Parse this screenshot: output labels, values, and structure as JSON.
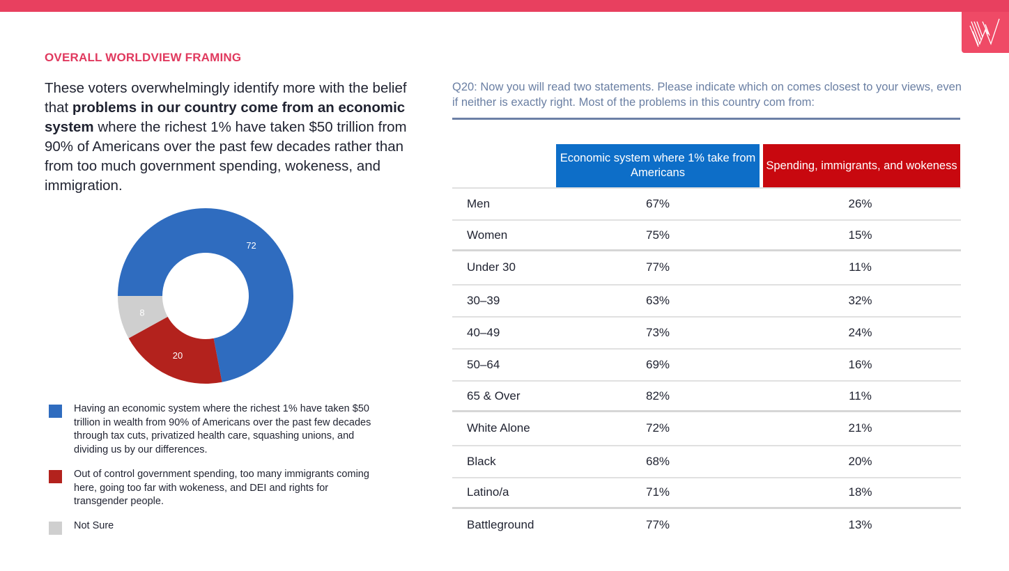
{
  "colors": {
    "accent": "#e0395e",
    "topbar": "#e8405f",
    "blue": "#2f6cbf",
    "red": "#b3221d",
    "grey": "#cfcfcf",
    "header_blue": "#0d6ec8",
    "header_red": "#c8080f"
  },
  "logo": {
    "icon": "w-logo-icon"
  },
  "section_title": "OVERALL WORLDVIEW FRAMING",
  "intro": {
    "p1": "These voters overwhelmingly identify more with the belief that ",
    "b1": "problems in our country come from an economic system",
    "p2": " where the richest 1% have taken $50 trillion from 90% of Americans over the past few decades rather than from too much government spending, wokeness, and immigration."
  },
  "chart_data": {
    "type": "pie",
    "donut": true,
    "slices": [
      {
        "label": "Having an economic system where the richest 1% have taken $50 trillion in wealth from 90% of Americans over the past few decades through tax cuts, privatized health care, squashing unions, and dividing us by our differences.",
        "value": 72,
        "color": "#2f6cbf"
      },
      {
        "label": "Out of control government spending, too many immigrants coming here, going too far with wokeness, and DEI and rights for transgender people.",
        "value": 20,
        "color": "#b3221d"
      },
      {
        "label": "Not Sure",
        "value": 8,
        "color": "#cfcfcf"
      }
    ]
  },
  "question": "Q20: Now you will read two statements. Please indicate which on comes closest to your views, even if neither is exactly right. Most of the problems in this country com from:",
  "table": {
    "headers": [
      "Economic system where 1% take from Americans",
      "Spending, immigrants, and wokeness"
    ],
    "rows": [
      {
        "group": "Men",
        "economic": "67%",
        "spending": "26%"
      },
      {
        "group": "Women",
        "economic": "75%",
        "spending": "15%"
      },
      {
        "group": "Under 30",
        "economic": "77%",
        "spending": "11%"
      },
      {
        "group": "30–39",
        "economic": "63%",
        "spending": "32%"
      },
      {
        "group": "40–49",
        "economic": "73%",
        "spending": "24%"
      },
      {
        "group": "50–64",
        "economic": "69%",
        "spending": "16%"
      },
      {
        "group": "65 & Over",
        "economic": "82%",
        "spending": "11%"
      },
      {
        "group": "White Alone",
        "economic": "72%",
        "spending": "21%"
      },
      {
        "group": "Black",
        "economic": "68%",
        "spending": "20%"
      },
      {
        "group": "Latino/a",
        "economic": "71%",
        "spending": "18%"
      },
      {
        "group": "Battleground",
        "economic": "77%",
        "spending": "13%"
      }
    ]
  }
}
